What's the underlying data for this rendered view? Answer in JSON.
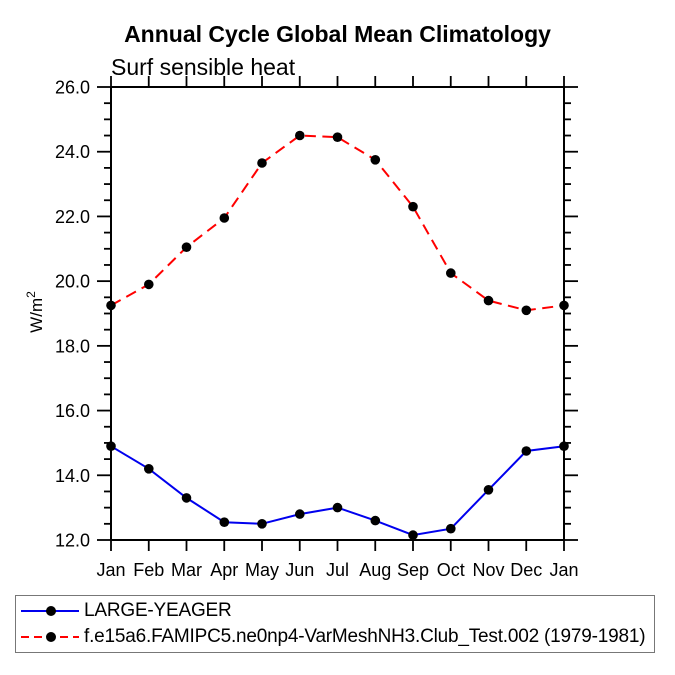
{
  "title": "Annual Cycle Global Mean Climatology",
  "subtitle": "Surf sensible heat",
  "ylabel": {
    "base": "W/m",
    "sup": "2"
  },
  "chart_data": {
    "type": "line",
    "categories": [
      "Jan",
      "Feb",
      "Mar",
      "Apr",
      "May",
      "Jun",
      "Jul",
      "Aug",
      "Sep",
      "Oct",
      "Nov",
      "Dec",
      "Jan"
    ],
    "series": [
      {
        "name": "LARGE-YEAGER",
        "color": "#0000ee",
        "line_style": "solid",
        "marker": "filled-circle",
        "marker_color": "#000000",
        "values": [
          14.9,
          14.2,
          13.3,
          12.55,
          12.5,
          12.8,
          13.0,
          12.6,
          12.15,
          12.35,
          13.55,
          14.75,
          14.9
        ]
      },
      {
        "name": "f.e15a6.FAMIPC5.ne0np4-VarMeshNH3.Club_Test.002 (1979-1981)",
        "color": "#ff0000",
        "line_style": "dashed",
        "marker": "filled-circle",
        "marker_color": "#000000",
        "values": [
          19.25,
          19.9,
          21.05,
          21.95,
          23.65,
          24.5,
          24.45,
          23.75,
          22.3,
          20.25,
          19.4,
          19.1,
          19.25
        ]
      }
    ],
    "ylim": [
      12.0,
      26.0
    ],
    "ytick_major_interval": 2.0,
    "ytick_minor_interval": 0.5,
    "ytick_labels": [
      "12.0",
      "14.0",
      "16.0",
      "18.0",
      "20.0",
      "22.0",
      "24.0",
      "26.0"
    ],
    "axis_color": "#000000",
    "grid": false,
    "legend_position": "bottom-left-box"
  }
}
